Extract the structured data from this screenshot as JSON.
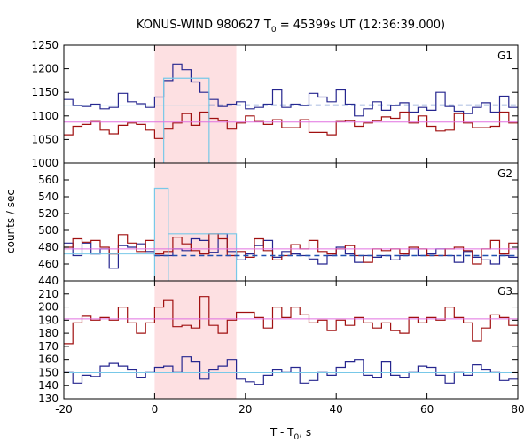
{
  "title": {
    "prefix": "KONUS-WIND 980627 T",
    "sub": "0",
    "suffix": " = 45399s UT (12:36:39.000)"
  },
  "ylabel": "counts / sec",
  "xlabel": {
    "prefix": "T - T",
    "sub": "0",
    "suffix": ", s"
  },
  "colors": {
    "red": "#a01010",
    "blue": "#26268f",
    "cyan": "#78c8e8",
    "pink": "#e070e0",
    "dash": "#2050b0",
    "shade": "#fde0e2"
  },
  "chart_data": {
    "type": "line",
    "x_axis": {
      "range": [
        -20,
        80
      ],
      "ticks": [
        -20,
        0,
        20,
        40,
        60,
        80
      ]
    },
    "shaded_interval": [
      0,
      18
    ],
    "bin_edges": [
      -20,
      -18,
      -16,
      -14,
      -12,
      -10,
      -8,
      -6,
      -4,
      -2,
      0,
      2,
      4,
      6,
      8,
      10,
      12,
      14,
      16,
      18,
      20,
      22,
      24,
      26,
      28,
      30,
      32,
      34,
      36,
      38,
      40,
      42,
      44,
      46,
      48,
      50,
      52,
      54,
      56,
      58,
      60,
      62,
      64,
      66,
      68,
      70,
      72,
      74,
      76,
      78,
      80
    ],
    "panels": [
      {
        "label": "G1",
        "ylim": [
          1000,
          1250
        ],
        "yticks": [
          1000,
          1050,
          1100,
          1150,
          1200,
          1250
        ],
        "series": [
          {
            "color_key": "blue",
            "style": "step",
            "values": [
              1135,
              1122,
              1120,
              1125,
              1115,
              1118,
              1148,
              1130,
              1126,
              1118,
              1140,
              1175,
              1210,
              1198,
              1172,
              1150,
              1135,
              1120,
              1125,
              1130,
              1115,
              1118,
              1125,
              1155,
              1118,
              1125,
              1122,
              1148,
              1140,
              1130,
              1155,
              1125,
              1100,
              1115,
              1130,
              1112,
              1122,
              1128,
              1108,
              1118,
              1112,
              1150,
              1120,
              1110,
              1105,
              1118,
              1128,
              1108,
              1142,
              1118
            ]
          },
          {
            "color_key": "red",
            "style": "step",
            "values": [
              1060,
              1078,
              1082,
              1088,
              1070,
              1062,
              1080,
              1085,
              1082,
              1070,
              1052,
              1072,
              1085,
              1105,
              1080,
              1108,
              1095,
              1090,
              1072,
              1085,
              1100,
              1088,
              1082,
              1092,
              1075,
              1075,
              1092,
              1065,
              1065,
              1060,
              1088,
              1090,
              1078,
              1085,
              1090,
              1098,
              1095,
              1108,
              1085,
              1100,
              1078,
              1068,
              1070,
              1105,
              1085,
              1075,
              1075,
              1078,
              1108,
              1085
            ]
          },
          {
            "color_key": "cyan",
            "style": "interval",
            "start": 2,
            "end": 12,
            "value": 1180
          },
          {
            "color_key": "cyan",
            "style": "hline",
            "value": 1123,
            "x_range": [
              -20,
              12
            ]
          },
          {
            "color_key": "dash",
            "style": "dashed",
            "value": 1123,
            "x_range": [
              12,
              80
            ]
          },
          {
            "color_key": "pink",
            "style": "hline",
            "value": 1087,
            "x_range": [
              -20,
              80
            ]
          }
        ]
      },
      {
        "label": "G2",
        "ylim": [
          440,
          580
        ],
        "yticks": [
          440,
          460,
          480,
          500,
          520,
          540,
          560
        ],
        "series": [
          {
            "color_key": "blue",
            "style": "step",
            "values": [
              485,
              470,
              485,
              472,
              478,
              455,
              482,
              480,
              484,
              475,
              470,
              470,
              478,
              476,
              490,
              488,
              474,
              496,
              475,
              465,
              472,
              482,
              488,
              468,
              475,
              472,
              470,
              466,
              460,
              470,
              480,
              472,
              462,
              470,
              468,
              470,
              465,
              470,
              478,
              470,
              472,
              478,
              470,
              462,
              475,
              468,
              465,
              460,
              470,
              468
            ]
          },
          {
            "color_key": "red",
            "style": "step",
            "values": [
              480,
              490,
              486,
              488,
              480,
              472,
              495,
              485,
              475,
              488,
              472,
              475,
              492,
              484,
              476,
              472,
              496,
              490,
              470,
              475,
              468,
              490,
              476,
              465,
              470,
              483,
              478,
              488,
              475,
              472,
              478,
              482,
              470,
              462,
              478,
              476,
              478,
              472,
              480,
              478,
              470,
              470,
              478,
              480,
              476,
              460,
              478,
              488,
              472,
              485
            ]
          },
          {
            "color_key": "cyan",
            "style": "interval",
            "start": 0,
            "end": 3,
            "value": 550
          },
          {
            "color_key": "cyan",
            "style": "interval",
            "start": 3,
            "end": 18,
            "value": 496
          },
          {
            "color_key": "cyan",
            "style": "hline",
            "value": 472,
            "x_range": [
              -20,
              0
            ]
          },
          {
            "color_key": "dash",
            "style": "dashed",
            "value": 470,
            "x_range": [
              0,
              80
            ]
          },
          {
            "color_key": "pink",
            "style": "hline",
            "value": 478,
            "x_range": [
              -20,
              80
            ]
          }
        ]
      },
      {
        "label": "G3",
        "ylim": [
          130,
          220
        ],
        "yticks": [
          130,
          140,
          150,
          160,
          170,
          180,
          190,
          200,
          210
        ],
        "series": [
          {
            "color_key": "red",
            "style": "step",
            "values": [
              172,
              188,
              193,
              190,
              192,
              190,
              200,
              188,
              180,
              188,
              200,
              205,
              185,
              186,
              184,
              208,
              186,
              180,
              190,
              196,
              196,
              192,
              184,
              200,
              192,
              200,
              194,
              188,
              190,
              182,
              190,
              186,
              192,
              188,
              184,
              188,
              182,
              180,
              192,
              188,
              192,
              190,
              200,
              192,
              188,
              174,
              184,
              194,
              192,
              186
            ]
          },
          {
            "color_key": "blue",
            "style": "step",
            "values": [
              150,
              142,
              148,
              147,
              155,
              157,
              155,
              152,
              146,
              150,
              154,
              155,
              150,
              162,
              158,
              145,
              152,
              155,
              160,
              145,
              143,
              141,
              148,
              152,
              150,
              154,
              142,
              144,
              150,
              148,
              154,
              158,
              160,
              148,
              146,
              158,
              148,
              146,
              150,
              155,
              154,
              148,
              142,
              150,
              148,
              156,
              152,
              150,
              144,
              145
            ]
          },
          {
            "color_key": "pink",
            "style": "hline",
            "value": 191,
            "x_range": [
              -20,
              80
            ]
          },
          {
            "color_key": "cyan",
            "style": "hline",
            "value": 150,
            "x_range": [
              -20,
              80
            ]
          }
        ]
      }
    ]
  }
}
